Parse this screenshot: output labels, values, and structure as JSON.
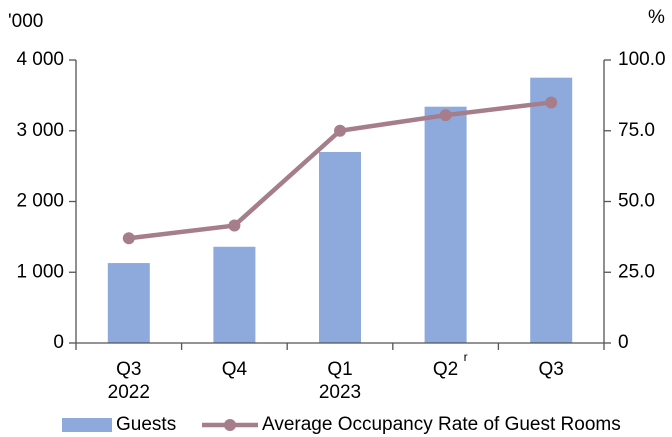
{
  "chart_data": {
    "type": "bar",
    "y_unit": "'000",
    "y2_unit": "%",
    "categories": [
      "Q3\n2022",
      "Q4",
      "Q1\n2023",
      "Q2",
      "Q3"
    ],
    "revision_marks": [
      null,
      null,
      null,
      "r",
      null
    ],
    "series": [
      {
        "name": "Guests",
        "type": "bar",
        "color": "#8eaadc",
        "values": [
          1130,
          1360,
          2700,
          3340,
          3750
        ]
      },
      {
        "name": "Average Occupancy Rate of Guest Rooms",
        "type": "line",
        "axis": "y2",
        "color": "#a67d8b",
        "values": [
          37,
          41.5,
          75,
          80.5,
          85
        ]
      }
    ],
    "ylim": [
      0,
      4000
    ],
    "yticks": [
      0,
      {
        "value": 1000,
        "label": "1 000"
      },
      {
        "value": 2000,
        "label": "2 000"
      },
      {
        "value": 3000,
        "label": "3 000"
      },
      {
        "value": 4000,
        "label": "4 000"
      }
    ],
    "y2lim": [
      0,
      100
    ],
    "y2ticks": [
      0,
      {
        "value": 25,
        "label": "25.0"
      },
      {
        "value": 50,
        "label": "50.0"
      },
      {
        "value": 75,
        "label": "75.0"
      },
      {
        "value": 100,
        "label": "100.0"
      }
    ],
    "grid": false,
    "legend": "bottom"
  }
}
